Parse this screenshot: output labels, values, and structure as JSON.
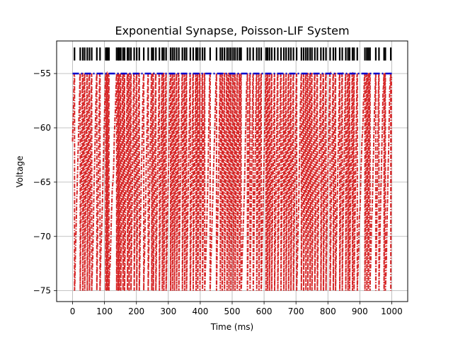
{
  "chart_data": {
    "type": "line",
    "title": "Exponential Synapse, Poisson-LIF System",
    "xlabel": "Time (ms)",
    "ylabel": "Voltage",
    "xlim": [
      -50,
      1050
    ],
    "ylim": [
      -76,
      -52
    ],
    "xticks": [
      0,
      100,
      200,
      300,
      400,
      500,
      600,
      700,
      800,
      900,
      1000
    ],
    "yticks": [
      -75,
      -70,
      -65,
      -60,
      -55
    ],
    "xtick_labels": [
      "0",
      "100",
      "200",
      "300",
      "400",
      "500",
      "600",
      "700",
      "800",
      "900",
      "1000"
    ],
    "ytick_labels": [
      "−75",
      "−70",
      "−65",
      "−60",
      "−55"
    ],
    "grid": true,
    "threshold": -55,
    "reset": -75,
    "spike_raster_y": [
      -53.8,
      -52.6
    ],
    "spike_times": [
      6,
      24,
      32,
      38,
      46,
      53,
      60,
      76,
      86,
      104,
      107,
      110,
      114,
      138,
      143,
      146,
      151,
      158,
      163,
      172,
      177,
      183,
      193,
      201,
      209,
      223,
      237,
      248,
      253,
      261,
      272,
      281,
      286,
      293,
      307,
      313,
      319,
      326,
      333,
      344,
      351,
      357,
      369,
      378,
      387,
      392,
      399,
      407,
      414,
      431,
      451,
      463,
      469,
      476,
      484,
      490,
      496,
      503,
      509,
      516,
      523,
      528,
      548,
      556,
      566,
      577,
      584,
      591,
      606,
      611,
      617,
      624,
      633,
      643,
      653,
      662,
      669,
      677,
      684,
      692,
      702,
      717,
      724,
      731,
      737,
      744,
      750,
      759,
      767,
      778,
      786,
      794,
      807,
      817,
      824,
      837,
      845,
      856,
      863,
      868,
      877,
      882,
      892,
      916,
      922,
      927,
      932,
      950,
      960,
      976,
      980,
      997
    ],
    "series": [
      {
        "style": "dashdot",
        "color": "#d62728",
        "kind": "membrane-voltage"
      },
      {
        "style": "dashdot",
        "color": "#0000cc",
        "kind": "threshold",
        "values": [
          -55,
          -55
        ]
      },
      {
        "style": "solid",
        "color": "#000000",
        "kind": "spike-raster"
      }
    ]
  }
}
